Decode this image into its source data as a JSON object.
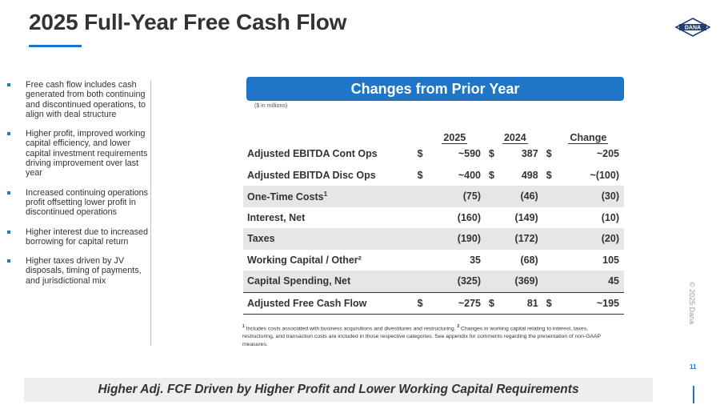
{
  "header": {
    "title": "2025 Full-Year Free Cash Flow",
    "logo_text": "DANA",
    "brand_color": "#1f76c9"
  },
  "bullets": [
    "Free cash flow includes cash generated from both continuing and discontinued operations, to align with deal structure",
    "Higher profit, improved working capital efficiency, and lower capital investment requirements driving improvement over last year",
    "Increased continuing operations profit offsetting lower profit in discontinued operations",
    "Higher interest due to increased borrowing for capital return",
    "Higher taxes driven by JV disposals, timing of payments, and jurisdictional mix"
  ],
  "table": {
    "banner": "Changes from Prior Year",
    "units": "($ in millions)",
    "columns": [
      "2025",
      "2024",
      "Change"
    ],
    "rows": [
      {
        "label": "Adjusted EBITDA Cont Ops",
        "sup": "",
        "v2025": "~590",
        "v2024": "387",
        "change": "~205",
        "dollar": "$",
        "shaded": false
      },
      {
        "label": "Adjusted EBITDA Disc Ops",
        "sup": "",
        "v2025": "~400",
        "v2024": "498",
        "change": "~(100)",
        "dollar": "$",
        "shaded": false
      },
      {
        "label": "One-Time Costs",
        "sup": "1",
        "v2025": "(75)",
        "v2024": "(46)",
        "change": "(30)",
        "dollar": "",
        "shaded": true
      },
      {
        "label": "Interest, Net",
        "sup": "",
        "v2025": "(160)",
        "v2024": "(149)",
        "change": "(10)",
        "dollar": "",
        "shaded": false
      },
      {
        "label": "Taxes",
        "sup": "",
        "v2025": "(190)",
        "v2024": "(172)",
        "change": "(20)",
        "dollar": "",
        "shaded": true
      },
      {
        "label": "Working Capital / Other²",
        "sup": "",
        "v2025": "35",
        "v2024": "(68)",
        "change": "105",
        "dollar": "",
        "shaded": false
      },
      {
        "label": "Capital Spending, Net",
        "sup": "",
        "v2025": "(325)",
        "v2024": "(369)",
        "change": "45",
        "dollar": "",
        "shaded": true
      },
      {
        "label": "Adjusted Free Cash Flow",
        "sup": "",
        "v2025": "~275",
        "v2024": "81",
        "change": "~195",
        "dollar": "$",
        "shaded": false
      }
    ]
  },
  "footnote": {
    "sup1": "1",
    "text1": " Includes costs associated with business acquisitions and divestitures and restructuring. ",
    "sup2": "2",
    "text2": " Changes in working capital relating to interest, taxes, restructuring, and transaction costs are included in those respective categories.  See appendix for comments regarding the presentation of non-GAAP measures."
  },
  "copyright": "© 2025 Dana",
  "page_number": "11",
  "takeaway": "Higher Adj. FCF Driven by Higher Profit and Lower Working Capital Requirements"
}
